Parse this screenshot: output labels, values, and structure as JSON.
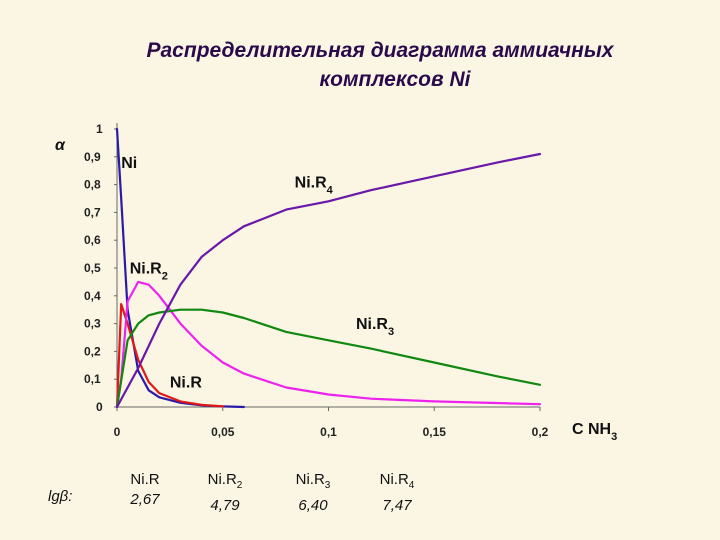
{
  "title": {
    "line1": "Распределительная диаграмма аммиачных",
    "line2": "комплексов Ni"
  },
  "chart_data": {
    "type": "line",
    "xlim": [
      0,
      0.2
    ],
    "ylim": [
      0,
      1
    ],
    "ylabel": "α",
    "xlabel": "C NH3",
    "x_ticks": [
      "0",
      "0,05",
      "0,1",
      "0,15",
      "0,2"
    ],
    "y_ticks": [
      "0",
      "0,1",
      "0,2",
      "0,3",
      "0,4",
      "0,5",
      "0,6",
      "0,7",
      "0,8",
      "0,9",
      "1"
    ],
    "grid": false,
    "series": [
      {
        "name": "Ni",
        "color": "#2a1aa8",
        "x": [
          0,
          0.002,
          0.005,
          0.01,
          0.015,
          0.02,
          0.03,
          0.04,
          0.05,
          0.06
        ],
        "y": [
          1.0,
          0.75,
          0.35,
          0.13,
          0.06,
          0.035,
          0.015,
          0.006,
          0.002,
          0.0
        ]
      },
      {
        "name": "Ni.R",
        "color": "#e01818",
        "x": [
          0,
          0.002,
          0.005,
          0.01,
          0.015,
          0.02,
          0.03,
          0.04,
          0.05
        ],
        "y": [
          0.0,
          0.37,
          0.3,
          0.17,
          0.09,
          0.05,
          0.02,
          0.008,
          0.002
        ]
      },
      {
        "name": "Ni.R2",
        "color": "#ee22ee",
        "x": [
          0,
          0.002,
          0.005,
          0.01,
          0.015,
          0.02,
          0.03,
          0.04,
          0.05,
          0.06,
          0.08,
          0.1,
          0.12,
          0.15,
          0.2
        ],
        "y": [
          0.0,
          0.1,
          0.38,
          0.45,
          0.44,
          0.4,
          0.3,
          0.22,
          0.16,
          0.12,
          0.07,
          0.045,
          0.03,
          0.02,
          0.01
        ]
      },
      {
        "name": "Ni.R3",
        "color": "#118811",
        "x": [
          0,
          0.005,
          0.01,
          0.015,
          0.02,
          0.03,
          0.04,
          0.05,
          0.06,
          0.08,
          0.1,
          0.12,
          0.15,
          0.18,
          0.2
        ],
        "y": [
          0.0,
          0.24,
          0.3,
          0.33,
          0.34,
          0.35,
          0.35,
          0.34,
          0.32,
          0.27,
          0.24,
          0.21,
          0.16,
          0.11,
          0.08
        ]
      },
      {
        "name": "Ni.R4",
        "color": "#6a18a8",
        "x": [
          0,
          0.01,
          0.02,
          0.03,
          0.04,
          0.05,
          0.06,
          0.07,
          0.08,
          0.1,
          0.12,
          0.15,
          0.18,
          0.2
        ],
        "y": [
          0.0,
          0.14,
          0.3,
          0.44,
          0.54,
          0.6,
          0.65,
          0.68,
          0.71,
          0.74,
          0.78,
          0.83,
          0.88,
          0.91
        ]
      }
    ],
    "curve_labels": [
      {
        "text": "Ni",
        "sub": "",
        "x": 0.002,
        "y": 0.86
      },
      {
        "text": "Ni.R",
        "sub": "4",
        "x": 0.084,
        "y": 0.79
      },
      {
        "text": "Ni.R",
        "sub": "2",
        "x": 0.006,
        "y": 0.48
      },
      {
        "text": "Ni.R",
        "sub": "3",
        "x": 0.113,
        "y": 0.28
      },
      {
        "text": "Ni.R",
        "sub": "",
        "x": 0.025,
        "y": 0.07
      }
    ]
  },
  "stability_constants": {
    "label": "lgβ:",
    "items": [
      {
        "name": "Ni.R",
        "sub": "",
        "value": "2,67"
      },
      {
        "name": "Ni.R",
        "sub": "2",
        "value": "4,79"
      },
      {
        "name": "Ni.R",
        "sub": "3",
        "value": "6,40"
      },
      {
        "name": "Ni.R",
        "sub": "4",
        "value": "7,47"
      }
    ]
  }
}
